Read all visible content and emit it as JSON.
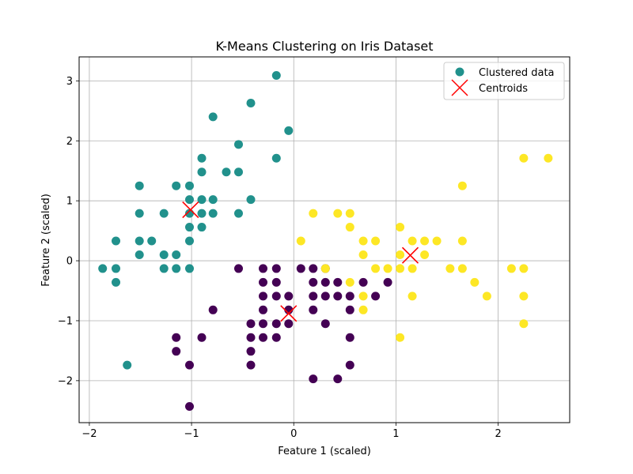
{
  "chart_data": {
    "type": "scatter",
    "title": "K-Means Clustering on Iris Dataset",
    "xlabel": "Feature 1 (scaled)",
    "ylabel": "Feature 2 (scaled)",
    "xlim": [
      -2.1,
      2.7
    ],
    "ylim": [
      -2.7,
      3.4
    ],
    "xticks": [
      -2,
      -1,
      0,
      1,
      2
    ],
    "yticks": [
      -2,
      -1,
      0,
      1,
      2,
      3
    ],
    "xtick_labels": [
      "−2",
      "−1",
      "0",
      "1",
      "2"
    ],
    "ytick_labels": [
      "−2",
      "−1",
      "0",
      "1",
      "2",
      "3"
    ],
    "grid": true,
    "legend_position": "top-right",
    "colors": {
      "cluster_0": "#440154",
      "cluster_1": "#21918c",
      "cluster_2": "#fde725",
      "centroid": "#ff0000",
      "grid": "#b0b0b0"
    },
    "series": [
      {
        "name": "Clustered data",
        "clusters": [
          {
            "cluster": 1,
            "points": [
              [
                -1.87,
                -0.13
              ],
              [
                -1.74,
                -0.13
              ],
              [
                -1.74,
                -0.36
              ],
              [
                -1.74,
                0.33
              ],
              [
                -1.51,
                1.25
              ],
              [
                -1.51,
                0.79
              ],
              [
                -1.51,
                0.33
              ],
              [
                -1.51,
                0.1
              ],
              [
                -1.39,
                0.33
              ],
              [
                -1.27,
                0.79
              ],
              [
                -1.27,
                0.1
              ],
              [
                -1.27,
                -0.13
              ],
              [
                -1.15,
                1.25
              ],
              [
                -1.15,
                0.1
              ],
              [
                -1.15,
                -0.13
              ],
              [
                -1.02,
                1.25
              ],
              [
                -1.02,
                1.02
              ],
              [
                -1.02,
                0.79
              ],
              [
                -1.02,
                0.56
              ],
              [
                -1.02,
                0.33
              ],
              [
                -1.02,
                -0.13
              ],
              [
                -0.9,
                1.71
              ],
              [
                -0.9,
                1.48
              ],
              [
                -0.9,
                1.02
              ],
              [
                -0.9,
                0.79
              ],
              [
                -0.9,
                0.56
              ],
              [
                -0.79,
                2.4
              ],
              [
                -0.79,
                1.02
              ],
              [
                -0.79,
                0.79
              ],
              [
                -0.66,
                1.48
              ],
              [
                -0.54,
                1.94
              ],
              [
                -0.54,
                1.48
              ],
              [
                -0.54,
                0.79
              ],
              [
                -0.42,
                2.63
              ],
              [
                -0.42,
                1.02
              ],
              [
                -0.17,
                3.09
              ],
              [
                -0.17,
                1.71
              ],
              [
                -0.05,
                2.17
              ],
              [
                -1.63,
                -1.74
              ]
            ]
          },
          {
            "cluster": 0,
            "points": [
              [
                -1.15,
                -1.28
              ],
              [
                -1.15,
                -1.51
              ],
              [
                -1.02,
                -1.74
              ],
              [
                -1.02,
                -2.43
              ],
              [
                -0.9,
                -1.28
              ],
              [
                -0.79,
                -0.82
              ],
              [
                -0.54,
                -0.13
              ],
              [
                -0.42,
                -1.05
              ],
              [
                -0.42,
                -1.28
              ],
              [
                -0.42,
                -1.51
              ],
              [
                -0.42,
                -1.74
              ],
              [
                -0.3,
                -0.13
              ],
              [
                -0.3,
                -0.36
              ],
              [
                -0.3,
                -0.59
              ],
              [
                -0.3,
                -0.82
              ],
              [
                -0.3,
                -1.05
              ],
              [
                -0.3,
                -1.28
              ],
              [
                -0.17,
                -0.13
              ],
              [
                -0.17,
                -0.36
              ],
              [
                -0.17,
                -0.59
              ],
              [
                -0.17,
                -1.05
              ],
              [
                -0.17,
                -1.28
              ],
              [
                -0.05,
                -0.59
              ],
              [
                -0.05,
                -0.82
              ],
              [
                -0.05,
                -1.05
              ],
              [
                0.07,
                -0.13
              ],
              [
                0.19,
                -0.13
              ],
              [
                0.19,
                -0.36
              ],
              [
                0.19,
                -0.59
              ],
              [
                0.19,
                -0.82
              ],
              [
                0.19,
                -1.97
              ],
              [
                0.31,
                -0.13
              ],
              [
                0.31,
                -0.36
              ],
              [
                0.31,
                -0.59
              ],
              [
                0.31,
                -1.05
              ],
              [
                0.43,
                -0.36
              ],
              [
                0.43,
                -0.59
              ],
              [
                0.43,
                -1.97
              ],
              [
                0.55,
                -0.59
              ],
              [
                0.55,
                -0.82
              ],
              [
                0.55,
                -1.28
              ],
              [
                0.55,
                -1.74
              ],
              [
                0.68,
                -0.36
              ],
              [
                0.8,
                -0.59
              ],
              [
                0.92,
                -0.36
              ]
            ]
          },
          {
            "cluster": 2,
            "points": [
              [
                0.07,
                0.33
              ],
              [
                0.19,
                0.79
              ],
              [
                0.31,
                -0.13
              ],
              [
                0.43,
                0.79
              ],
              [
                0.55,
                0.79
              ],
              [
                0.55,
                0.56
              ],
              [
                0.55,
                -0.36
              ],
              [
                0.68,
                0.33
              ],
              [
                0.68,
                0.1
              ],
              [
                0.68,
                -0.59
              ],
              [
                0.68,
                -0.82
              ],
              [
                0.8,
                0.33
              ],
              [
                0.8,
                -0.13
              ],
              [
                0.92,
                -0.13
              ],
              [
                1.04,
                0.56
              ],
              [
                1.04,
                0.1
              ],
              [
                1.04,
                -0.13
              ],
              [
                1.04,
                -1.28
              ],
              [
                1.16,
                0.33
              ],
              [
                1.16,
                -0.13
              ],
              [
                1.16,
                -0.59
              ],
              [
                1.28,
                0.33
              ],
              [
                1.28,
                0.1
              ],
              [
                1.4,
                0.33
              ],
              [
                1.53,
                -0.13
              ],
              [
                1.65,
                1.25
              ],
              [
                1.65,
                0.33
              ],
              [
                1.65,
                -0.13
              ],
              [
                1.77,
                -0.36
              ],
              [
                1.89,
                -0.59
              ],
              [
                2.13,
                -0.13
              ],
              [
                2.25,
                1.71
              ],
              [
                2.25,
                -0.13
              ],
              [
                2.25,
                -0.59
              ],
              [
                2.25,
                -1.05
              ],
              [
                2.49,
                1.71
              ]
            ]
          }
        ]
      },
      {
        "name": "Centroids",
        "points": [
          [
            -1.01,
            0.85
          ],
          [
            -0.05,
            -0.88
          ],
          [
            1.14,
            0.09
          ]
        ]
      }
    ]
  }
}
